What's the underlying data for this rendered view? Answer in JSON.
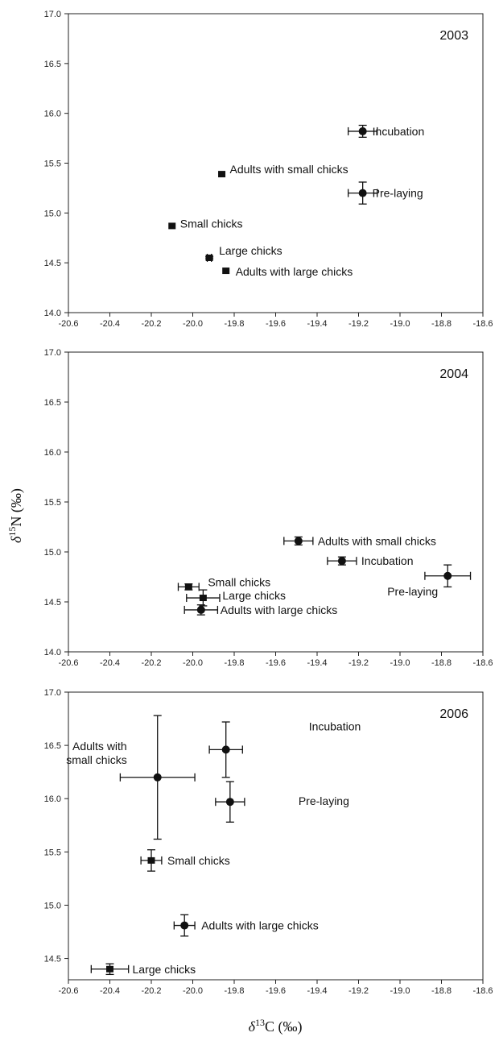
{
  "axis_titles": {
    "y_base": "δ",
    "y_sup": "15",
    "y_rest": "N (‰)",
    "x_base": "δ",
    "x_sup": "13",
    "x_rest": "C (‰)"
  },
  "chart_data": [
    {
      "type": "scatter",
      "title": "2003",
      "xlim": [
        -20.6,
        -18.6
      ],
      "ylim": [
        14.0,
        17.0
      ],
      "x_ticks": [
        "-20.6",
        "-20.4",
        "-20.2",
        "-20.0",
        "-19.8",
        "-19.6",
        "-19.4",
        "-19.2",
        "-19.0",
        "-18.8",
        "-18.6"
      ],
      "y_ticks": [
        "14.0",
        "14.5",
        "15.0",
        "15.5",
        "16.0",
        "16.5",
        "17.0"
      ],
      "points": [
        {
          "label": "Incubation",
          "x": -19.18,
          "y": 15.82,
          "xerr": 0.07,
          "yerr": 0.06,
          "marker": "circle"
        },
        {
          "label": "Pre-laying",
          "x": -19.18,
          "y": 15.2,
          "xerr": 0.07,
          "yerr": 0.11,
          "marker": "circle"
        },
        {
          "label": "Adults with small chicks",
          "x": -19.86,
          "y": 15.39,
          "xerr": 0.0,
          "yerr": 0.0,
          "marker": "square"
        },
        {
          "label": "Small chicks",
          "x": -20.1,
          "y": 14.87,
          "xerr": 0.0,
          "yerr": 0.0,
          "marker": "square"
        },
        {
          "label": "Large chicks",
          "x": -19.92,
          "y": 14.55,
          "xerr": 0.01,
          "yerr": 0.01,
          "marker": "square"
        },
        {
          "label": "Adults with large chicks",
          "x": -19.84,
          "y": 14.42,
          "xerr": 0.0,
          "yerr": 0.0,
          "marker": "square"
        }
      ]
    },
    {
      "type": "scatter",
      "title": "2004",
      "xlim": [
        -20.6,
        -18.6
      ],
      "ylim": [
        14.0,
        17.0
      ],
      "x_ticks": [
        "-20.6",
        "-20.4",
        "-20.2",
        "-20.0",
        "-19.8",
        "-19.6",
        "-19.4",
        "-19.2",
        "-19.0",
        "-18.8",
        "-18.6"
      ],
      "y_ticks": [
        "14.0",
        "14.5",
        "15.0",
        "15.5",
        "16.0",
        "16.5",
        "17.0"
      ],
      "points": [
        {
          "label": "Adults with small chicks",
          "x": -19.49,
          "y": 15.11,
          "xerr": 0.07,
          "yerr": 0.04,
          "marker": "circle"
        },
        {
          "label": "Incubation",
          "x": -19.28,
          "y": 14.91,
          "xerr": 0.07,
          "yerr": 0.04,
          "marker": "circle"
        },
        {
          "label": "Pre-laying",
          "x": -18.77,
          "y": 14.76,
          "xerr": 0.11,
          "yerr": 0.11,
          "marker": "circle"
        },
        {
          "label": "Small chicks",
          "x": -20.02,
          "y": 14.65,
          "xerr": 0.05,
          "yerr": 0.03,
          "marker": "square"
        },
        {
          "label": "Large chicks",
          "x": -19.95,
          "y": 14.54,
          "xerr": 0.08,
          "yerr": 0.08,
          "marker": "square"
        },
        {
          "label": "Adults with large chicks",
          "x": -19.96,
          "y": 14.42,
          "xerr": 0.08,
          "yerr": 0.05,
          "marker": "circle"
        }
      ]
    },
    {
      "type": "scatter",
      "title": "2006",
      "xlim": [
        -20.6,
        -18.6
      ],
      "ylim": [
        14.3,
        17.0
      ],
      "x_ticks": [
        "-20.6",
        "-20.4",
        "-20.2",
        "-20.0",
        "-19.8",
        "-19.6",
        "-19.4",
        "-19.2",
        "-19.0",
        "-18.8",
        "-18.6"
      ],
      "y_ticks": [
        "14.5",
        "15.0",
        "15.5",
        "16.0",
        "16.5",
        "17.0"
      ],
      "points": [
        {
          "label": "Incubation",
          "x": -19.84,
          "y": 16.46,
          "xerr": 0.08,
          "yerr": 0.26,
          "marker": "circle"
        },
        {
          "label": "Adults with small chicks",
          "x": -20.17,
          "y": 16.2,
          "xerr": 0.18,
          "yerr": 0.58,
          "marker": "circle"
        },
        {
          "label": "Pre-laying",
          "x": -19.82,
          "y": 15.97,
          "xerr": 0.07,
          "yerr": 0.19,
          "marker": "circle"
        },
        {
          "label": "Small chicks",
          "x": -20.2,
          "y": 15.42,
          "xerr": 0.05,
          "yerr": 0.1,
          "marker": "square"
        },
        {
          "label": "Adults with large chicks",
          "x": -20.04,
          "y": 14.81,
          "xerr": 0.05,
          "yerr": 0.1,
          "marker": "circle"
        },
        {
          "label": "Large chicks",
          "x": -20.4,
          "y": 14.4,
          "xerr": 0.09,
          "yerr": 0.05,
          "marker": "square"
        }
      ]
    }
  ]
}
